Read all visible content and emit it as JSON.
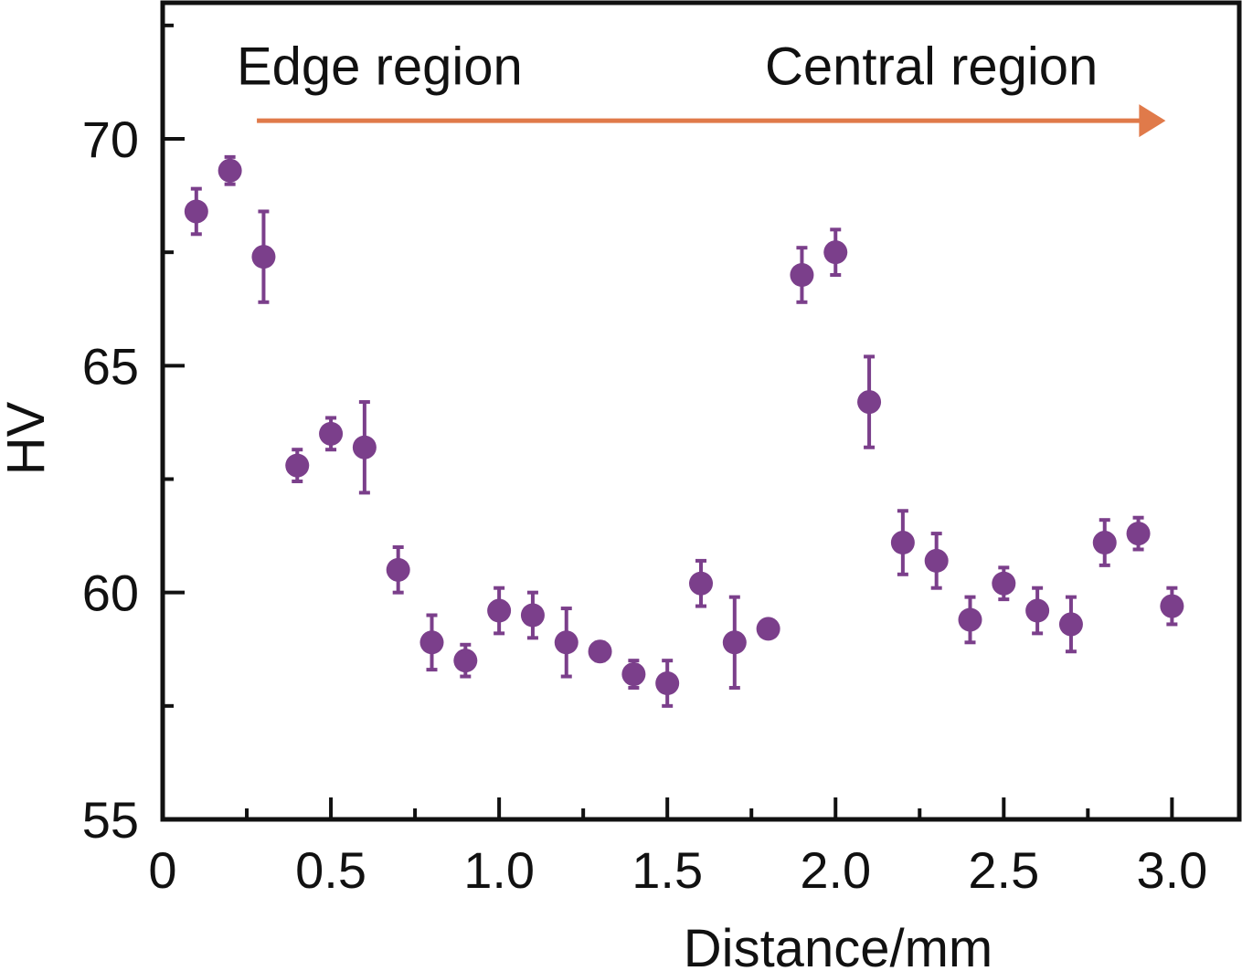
{
  "chart_data": {
    "type": "scatter",
    "title": "",
    "xlabel": "Distance/mm",
    "ylabel": "HV",
    "xlim": [
      0,
      3.2
    ],
    "ylim": [
      55,
      73
    ],
    "x_ticks": [
      0,
      0.5,
      1.0,
      1.5,
      2.0,
      2.5,
      3.0
    ],
    "x_tick_labels": [
      "0",
      "0.5",
      "1.0",
      "1.5",
      "2.0",
      "2.5",
      "3.0"
    ],
    "y_ticks": [
      55,
      60,
      65,
      70
    ],
    "y_tick_labels": [
      "55",
      "60",
      "65",
      "70"
    ],
    "x_minor_ticks": [
      0.25,
      0.75,
      1.25,
      1.75,
      2.25,
      2.75
    ],
    "y_minor_ticks": [
      57.5,
      62.5,
      67.5,
      72.5
    ],
    "grid": false,
    "legend": "none",
    "annotations": [
      {
        "text": "Edge region",
        "x": 0.22,
        "y": 71.6
      },
      {
        "text": "Central region",
        "x": 1.79,
        "y": 71.6
      }
    ],
    "arrow": {
      "x_start": 0.28,
      "x_end": 3.0,
      "y": 70.4,
      "color": "#E07A4A"
    },
    "series": [
      {
        "name": "HV",
        "color": "#7B3F8B",
        "x": [
          0.1,
          0.2,
          0.3,
          0.4,
          0.5,
          0.6,
          0.7,
          0.8,
          0.9,
          1.0,
          1.1,
          1.2,
          1.3,
          1.4,
          1.5,
          1.6,
          1.7,
          1.8,
          1.9,
          2.0,
          2.1,
          2.2,
          2.3,
          2.4,
          2.5,
          2.6,
          2.7,
          2.8,
          2.9,
          3.0
        ],
        "y": [
          68.4,
          69.3,
          67.4,
          62.8,
          63.5,
          63.2,
          60.5,
          58.9,
          58.5,
          59.6,
          59.5,
          58.9,
          58.7,
          58.2,
          58.0,
          60.2,
          58.9,
          59.2,
          67.0,
          67.5,
          64.2,
          61.1,
          60.7,
          59.4,
          60.2,
          59.6,
          59.3,
          61.1,
          61.3,
          59.7
        ],
        "error": [
          0.5,
          0.3,
          1.0,
          0.35,
          0.35,
          1.0,
          0.5,
          0.6,
          0.35,
          0.5,
          0.5,
          0.75,
          0.2,
          0.3,
          0.5,
          0.5,
          1.0,
          0.15,
          0.6,
          0.5,
          1.0,
          0.7,
          0.6,
          0.5,
          0.35,
          0.5,
          0.6,
          0.5,
          0.35,
          0.4
        ]
      }
    ]
  }
}
